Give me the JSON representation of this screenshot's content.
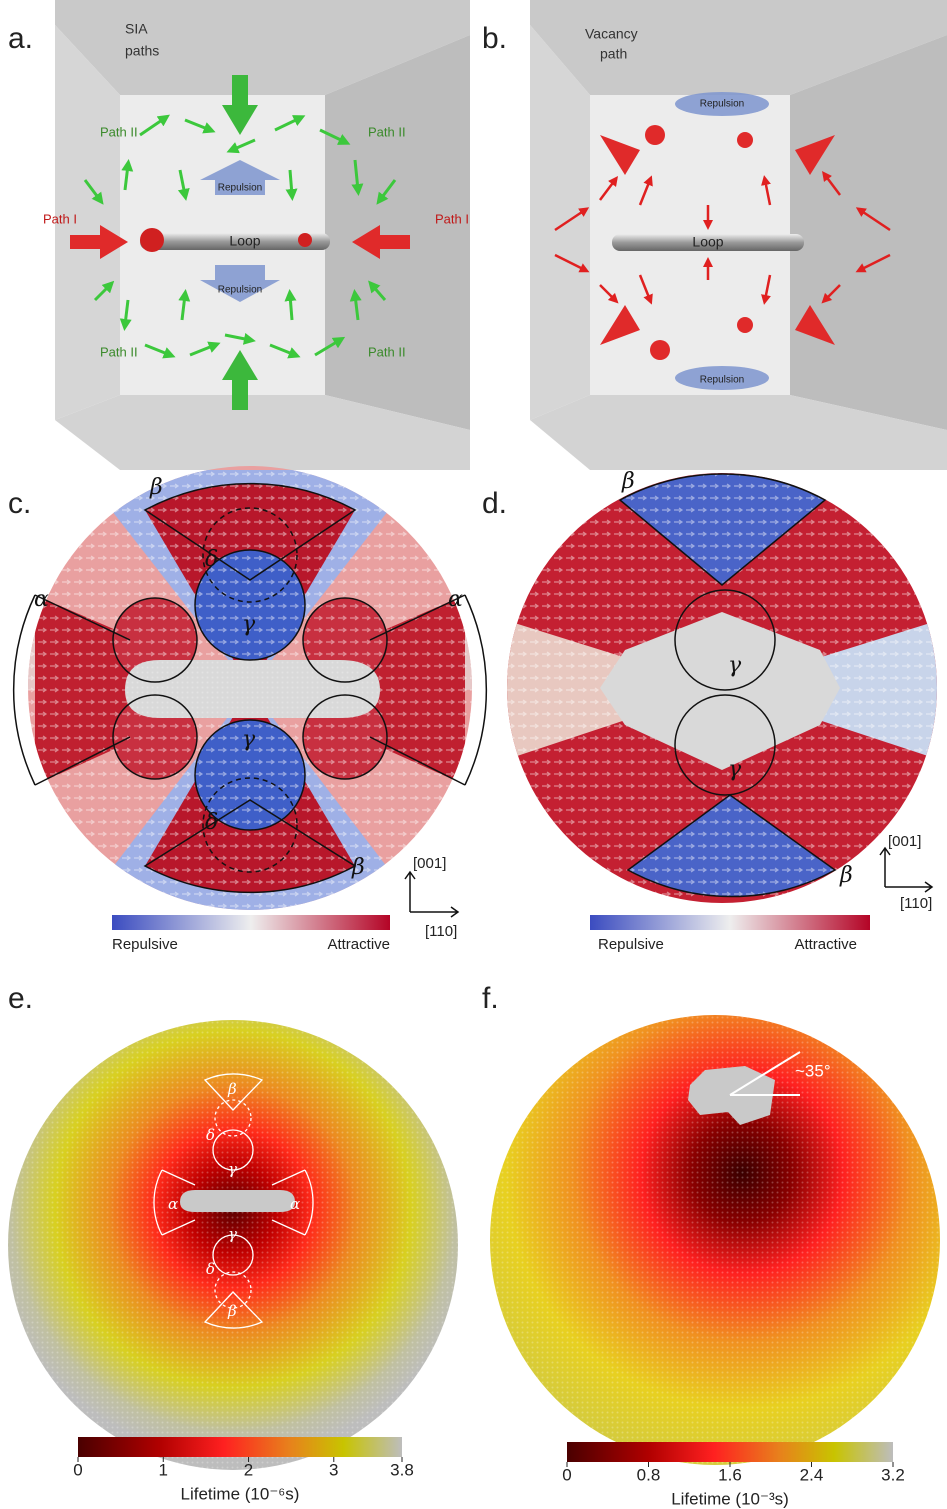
{
  "a": {
    "label": "a.",
    "title": [
      "SIA",
      "paths"
    ],
    "path2": [
      "Path II",
      "Path II",
      "Path II",
      "Path II"
    ],
    "path1": [
      "Path I",
      "Path I"
    ],
    "repulsion": [
      "Repulsion",
      "Repulsion"
    ],
    "loop": "Loop"
  },
  "b": {
    "label": "b.",
    "title": [
      "Vacancy",
      "path"
    ],
    "repulsion": [
      "Repulsion",
      "Repulsion"
    ],
    "loop": "Loop"
  },
  "c": {
    "label": "c.",
    "regions": [
      "β",
      "α",
      "α",
      "δ",
      "γ",
      "γ",
      "δ",
      "β"
    ],
    "axes": [
      "[001]",
      "[110]"
    ],
    "colorbar": [
      "Repulsive",
      "Attractive"
    ]
  },
  "d": {
    "label": "d.",
    "regions": [
      "β",
      "γ",
      "γ",
      "β"
    ],
    "axes": [
      "[001]",
      "[110]"
    ],
    "colorbar": [
      "Repulsive",
      "Attractive"
    ]
  },
  "e": {
    "label": "e.",
    "regions": [
      "β",
      "δ",
      "γ",
      "α",
      "α",
      "γ",
      "δ",
      "β"
    ],
    "colorbar": {
      "label": "Lifetime (10⁻⁶s)",
      "range": [
        0,
        3.8
      ],
      "ticks": [
        0,
        1,
        2,
        3,
        3.8
      ]
    }
  },
  "f": {
    "label": "f.",
    "angle": "~35°",
    "colorbar": {
      "label": "Lifetime (10⁻³s)",
      "range": [
        0,
        3.2
      ],
      "ticks": [
        0,
        0.8,
        1.6,
        2.4,
        3.2
      ]
    }
  }
}
